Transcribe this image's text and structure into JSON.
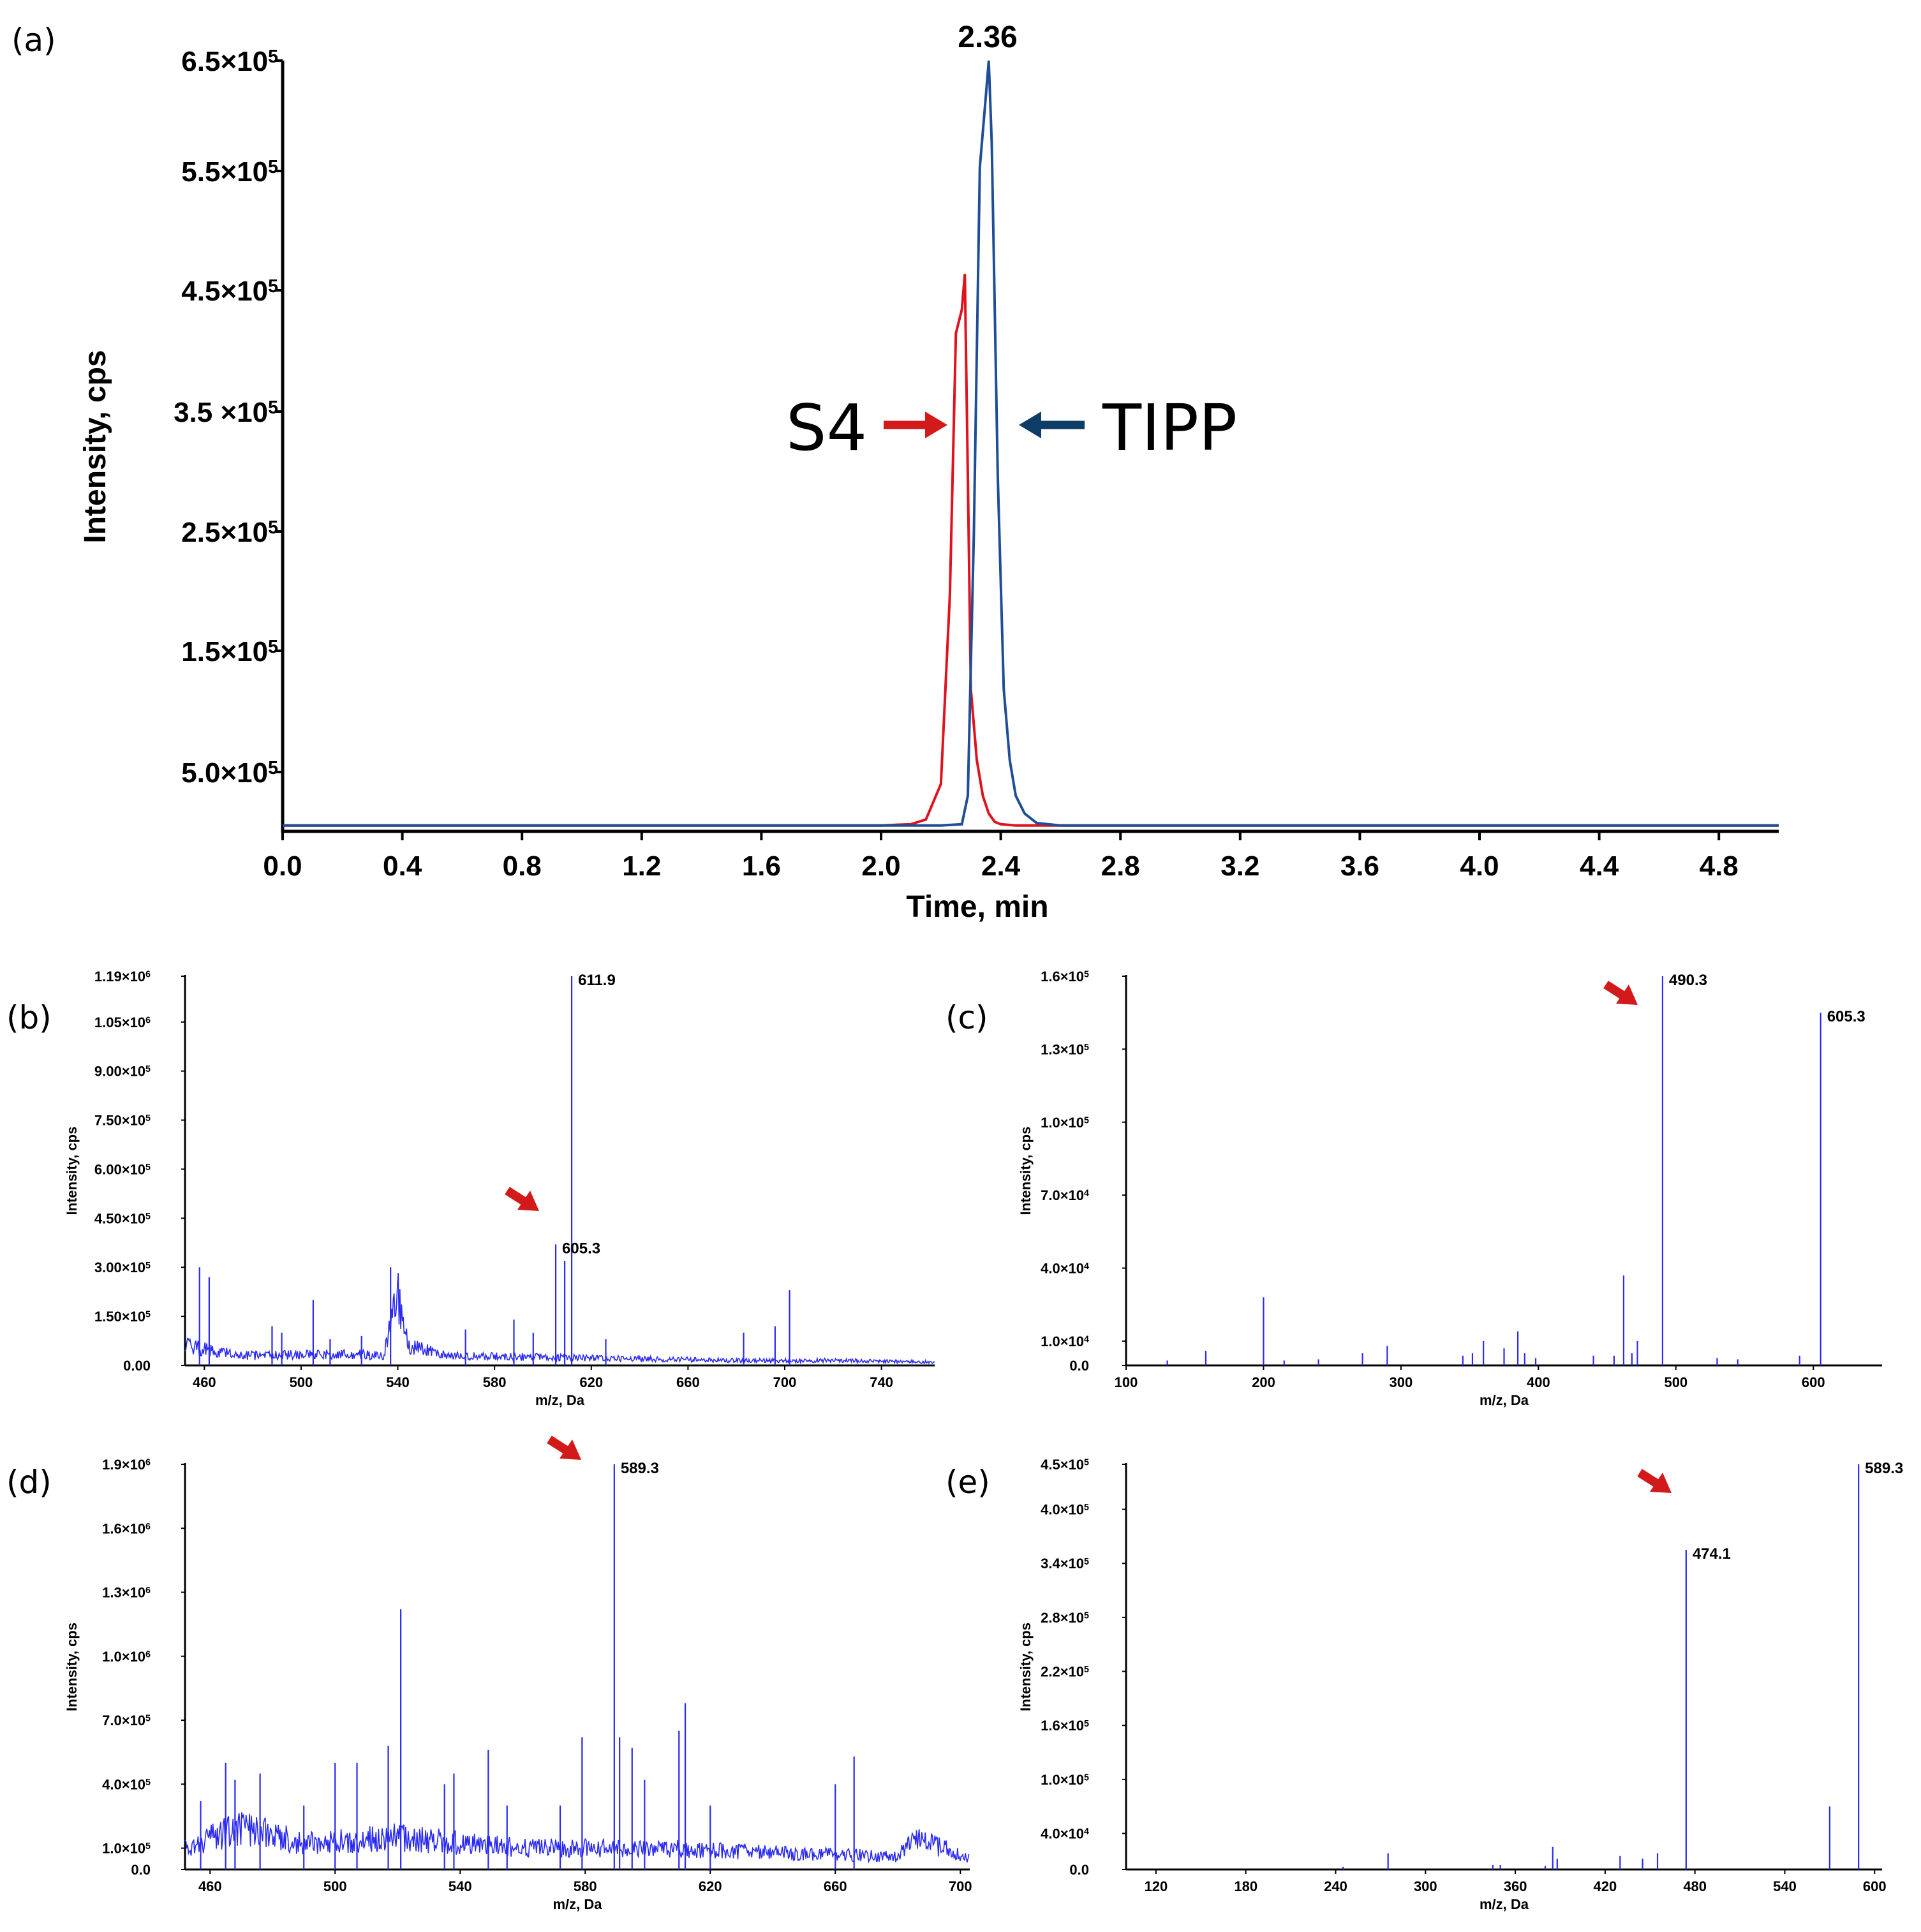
{
  "colors": {
    "s4": "#e0121e",
    "tipp": "#1f4e96",
    "spectrum": "#2a2af2",
    "arrow_red": "#d21a1a",
    "arrow_blue": "#0d3c66"
  },
  "panel_a": {
    "label": "(a)",
    "xlabel": "Time, min",
    "ylabel": "Intensity, cps",
    "peak_label": "2.36",
    "s4_label": "S4",
    "tipp_label": "TIPP",
    "xticks": [
      "0.0",
      "0.4",
      "0.8",
      "1.2",
      "1.6",
      "2.0",
      "2.4",
      "2.8",
      "3.2",
      "3.6",
      "4.0",
      "4.4",
      "4.8"
    ],
    "yticks": [
      {
        "mant": "5.0×10",
        "exp": "5"
      },
      {
        "mant": "1.5×10",
        "exp": "5"
      },
      {
        "mant": "2.5×10",
        "exp": "5"
      },
      {
        "mant": "3.5 ×10",
        "exp": "5"
      },
      {
        "mant": "4.5×10",
        "exp": "5"
      },
      {
        "mant": "5.5×10",
        "exp": "5"
      },
      {
        "mant": "6.5×10",
        "exp": "5"
      }
    ]
  },
  "chart_data": [
    {
      "type": "line",
      "panel": "a",
      "title": "",
      "xlabel": "Time, min",
      "ylabel": "Intensity, cps",
      "xlim": [
        0,
        5.0
      ],
      "ylim": [
        0,
        650000
      ],
      "series": [
        {
          "name": "S4",
          "x": [
            0,
            2.0,
            2.1,
            2.15,
            2.2,
            2.23,
            2.25,
            2.27,
            2.28,
            2.29,
            2.3,
            2.32,
            2.34,
            2.36,
            2.38,
            2.4,
            2.45,
            2.5,
            5.0
          ],
          "y": [
            5000,
            5000,
            6000,
            10000,
            40000,
            200000,
            420000,
            440000,
            470000,
            300000,
            120000,
            60000,
            30000,
            15000,
            8000,
            6000,
            5000,
            5000,
            5000
          ]
        },
        {
          "name": "TIPP",
          "x": [
            0,
            2.2,
            2.27,
            2.29,
            2.31,
            2.33,
            2.35,
            2.36,
            2.37,
            2.39,
            2.41,
            2.43,
            2.45,
            2.48,
            2.52,
            2.6,
            5.0
          ],
          "y": [
            5000,
            5000,
            6000,
            30000,
            250000,
            560000,
            620000,
            650000,
            580000,
            300000,
            120000,
            60000,
            30000,
            15000,
            7000,
            5000,
            5000
          ]
        }
      ],
      "annotations": [
        "2.36",
        "S4",
        "TIPP"
      ]
    },
    {
      "type": "line",
      "panel": "b",
      "xlabel": "m/z, Da",
      "ylabel": "Intensity, cps",
      "xlim": [
        452,
        762
      ],
      "ylim": [
        0,
        1190000
      ],
      "xticks": [
        "460",
        "500",
        "540",
        "580",
        "620",
        "660",
        "700",
        "740"
      ],
      "yticks": [
        {
          "m": "0.00",
          "e": ""
        },
        {
          "m": "1.50×10",
          "e": "5"
        },
        {
          "m": "3.00×10",
          "e": "5"
        },
        {
          "m": "4.50×10",
          "e": "5"
        },
        {
          "m": "6.00×10",
          "e": "5"
        },
        {
          "m": "7.50×10",
          "e": "5"
        },
        {
          "m": "9.00×10",
          "e": "5"
        },
        {
          "m": "1.05×10",
          "e": "6"
        },
        {
          "m": "1.19×10",
          "e": "6"
        }
      ],
      "yvals": [
        0,
        150000,
        300000,
        450000,
        600000,
        750000,
        900000,
        1050000,
        1190000
      ],
      "baseline": [
        [
          452,
          60000
        ],
        [
          460,
          50000
        ],
        [
          465,
          40000
        ],
        [
          480,
          30000
        ],
        [
          520,
          35000
        ],
        [
          534,
          30000
        ],
        [
          540,
          200000
        ],
        [
          545,
          60000
        ],
        [
          560,
          30000
        ],
        [
          600,
          25000
        ],
        [
          640,
          20000
        ],
        [
          680,
          15000
        ],
        [
          720,
          15000
        ],
        [
          762,
          10000
        ]
      ],
      "peaks": [
        [
          458,
          300000
        ],
        [
          462,
          270000
        ],
        [
          488,
          120000
        ],
        [
          492,
          100000
        ],
        [
          505,
          200000
        ],
        [
          512,
          80000
        ],
        [
          525,
          90000
        ],
        [
          537,
          300000
        ],
        [
          568,
          110000
        ],
        [
          588,
          140000
        ],
        [
          596,
          100000
        ],
        [
          605.3,
          370000
        ],
        [
          609,
          320000
        ],
        [
          611.9,
          1190000
        ],
        [
          626,
          80000
        ],
        [
          683,
          100000
        ],
        [
          696,
          120000
        ],
        [
          702,
          230000
        ]
      ],
      "peak_labels": [
        {
          "x": 611.9,
          "text": "611.9"
        },
        {
          "x": 605.3,
          "text": "605.3"
        }
      ]
    },
    {
      "type": "bar",
      "panel": "c",
      "xlabel": "m/z, Da",
      "ylabel": "Intensity, cps",
      "xlim": [
        100,
        650
      ],
      "ylim": [
        0,
        160000
      ],
      "xticks": [
        "100",
        "200",
        "300",
        "400",
        "500",
        "600"
      ],
      "yticks": [
        {
          "m": "0.0",
          "e": ""
        },
        {
          "m": "1.0×10",
          "e": "4"
        },
        {
          "m": "4.0×10",
          "e": "4"
        },
        {
          "m": "7.0×10",
          "e": "4"
        },
        {
          "m": "1.0×10",
          "e": "5"
        },
        {
          "m": "1.3×10",
          "e": "5"
        },
        {
          "m": "1.6×10",
          "e": "5"
        }
      ],
      "yvals": [
        0,
        10000,
        40000,
        70000,
        100000,
        130000,
        160000
      ],
      "peaks": [
        [
          130,
          2000
        ],
        [
          158,
          6000
        ],
        [
          200,
          28000
        ],
        [
          215,
          2000
        ],
        [
          240,
          2500
        ],
        [
          272,
          5000
        ],
        [
          290,
          8000
        ],
        [
          345,
          4000
        ],
        [
          352,
          5000
        ],
        [
          360,
          10000
        ],
        [
          375,
          7000
        ],
        [
          385,
          14000
        ],
        [
          390,
          5000
        ],
        [
          398,
          3000
        ],
        [
          440,
          4000
        ],
        [
          455,
          4000
        ],
        [
          462,
          37000
        ],
        [
          468,
          5000
        ],
        [
          472,
          10000
        ],
        [
          490.3,
          160000
        ],
        [
          530,
          3000
        ],
        [
          545,
          2500
        ],
        [
          590,
          4000
        ],
        [
          605.3,
          145000
        ]
      ],
      "peak_labels": [
        {
          "x": 490.3,
          "text": "490.3"
        },
        {
          "x": 605.3,
          "text": "605.3"
        }
      ]
    },
    {
      "type": "line",
      "panel": "d",
      "xlabel": "m/z, Da",
      "ylabel": "Intensity, cps",
      "xlim": [
        452,
        703
      ],
      "ylim": [
        0,
        1900000
      ],
      "xticks": [
        "460",
        "500",
        "540",
        "580",
        "620",
        "660",
        "700"
      ],
      "yticks": [
        {
          "m": "0.0",
          "e": ""
        },
        {
          "m": "1.0×10",
          "e": "5"
        },
        {
          "m": "4.0×10",
          "e": "5"
        },
        {
          "m": "7.0×10",
          "e": "5"
        },
        {
          "m": "1.0×10",
          "e": "6"
        },
        {
          "m": "1.3×10",
          "e": "6"
        },
        {
          "m": "1.6×10",
          "e": "6"
        },
        {
          "m": "1.9×10",
          "e": "6"
        }
      ],
      "yvals": [
        0,
        100000,
        400000,
        700000,
        1000000,
        1300000,
        1600000,
        1900000
      ],
      "baseline": [
        [
          452,
          100000
        ],
        [
          470,
          200000
        ],
        [
          490,
          120000
        ],
        [
          520,
          150000
        ],
        [
          560,
          100000
        ],
        [
          600,
          100000
        ],
        [
          640,
          80000
        ],
        [
          680,
          60000
        ],
        [
          686,
          150000
        ],
        [
          703,
          50000
        ]
      ],
      "peaks": [
        [
          457,
          320000
        ],
        [
          465,
          500000
        ],
        [
          468,
          420000
        ],
        [
          476,
          450000
        ],
        [
          490,
          300000
        ],
        [
          500,
          500000
        ],
        [
          507,
          500000
        ],
        [
          517,
          580000
        ],
        [
          521,
          1220000
        ],
        [
          535,
          400000
        ],
        [
          538,
          450000
        ],
        [
          549,
          560000
        ],
        [
          555,
          300000
        ],
        [
          572,
          300000
        ],
        [
          579,
          620000
        ],
        [
          589.3,
          1900000
        ],
        [
          591,
          620000
        ],
        [
          595,
          570000
        ],
        [
          599,
          420000
        ],
        [
          610,
          650000
        ],
        [
          612,
          780000
        ],
        [
          620,
          300000
        ],
        [
          660,
          400000
        ],
        [
          666,
          530000
        ]
      ],
      "peak_labels": [
        {
          "x": 589.3,
          "text": "589.3"
        }
      ]
    },
    {
      "type": "bar",
      "panel": "e",
      "xlabel": "m/z, Da",
      "ylabel": "Intensity, cps",
      "xlim": [
        100,
        605
      ],
      "ylim": [
        0,
        450000
      ],
      "xticks": [
        "120",
        "180",
        "240",
        "300",
        "360",
        "420",
        "480",
        "540",
        "600"
      ],
      "yticks": [
        {
          "m": "0.0",
          "e": ""
        },
        {
          "m": "4.0×10",
          "e": "4"
        },
        {
          "m": "1.0×10",
          "e": "5"
        },
        {
          "m": "1.6×10",
          "e": "5"
        },
        {
          "m": "2.2×10",
          "e": "5"
        },
        {
          "m": "2.8×10",
          "e": "5"
        },
        {
          "m": "3.4×10",
          "e": "5"
        },
        {
          "m": "4.0×10",
          "e": "5"
        },
        {
          "m": "4.5×10",
          "e": "5"
        }
      ],
      "yvals": [
        0,
        40000,
        100000,
        160000,
        220000,
        280000,
        340000,
        400000,
        450000
      ],
      "peaks": [
        [
          245,
          3000
        ],
        [
          275,
          18000
        ],
        [
          345,
          5000
        ],
        [
          350,
          5000
        ],
        [
          380,
          4000
        ],
        [
          385,
          25000
        ],
        [
          388,
          12000
        ],
        [
          430,
          15000
        ],
        [
          445,
          12000
        ],
        [
          455,
          18000
        ],
        [
          474.1,
          355000
        ],
        [
          570,
          70000
        ],
        [
          589.3,
          450000
        ]
      ],
      "peak_labels": [
        {
          "x": 474.1,
          "text": "474.1"
        },
        {
          "x": 589.3,
          "text": "589.3"
        }
      ]
    }
  ],
  "panel_labels": {
    "b": "(b)",
    "c": "(c)",
    "d": "(d)",
    "e": "(e)"
  },
  "spectra_axis": {
    "xlabel": "m/z, Da",
    "ylabel": "Intensity, cps"
  }
}
